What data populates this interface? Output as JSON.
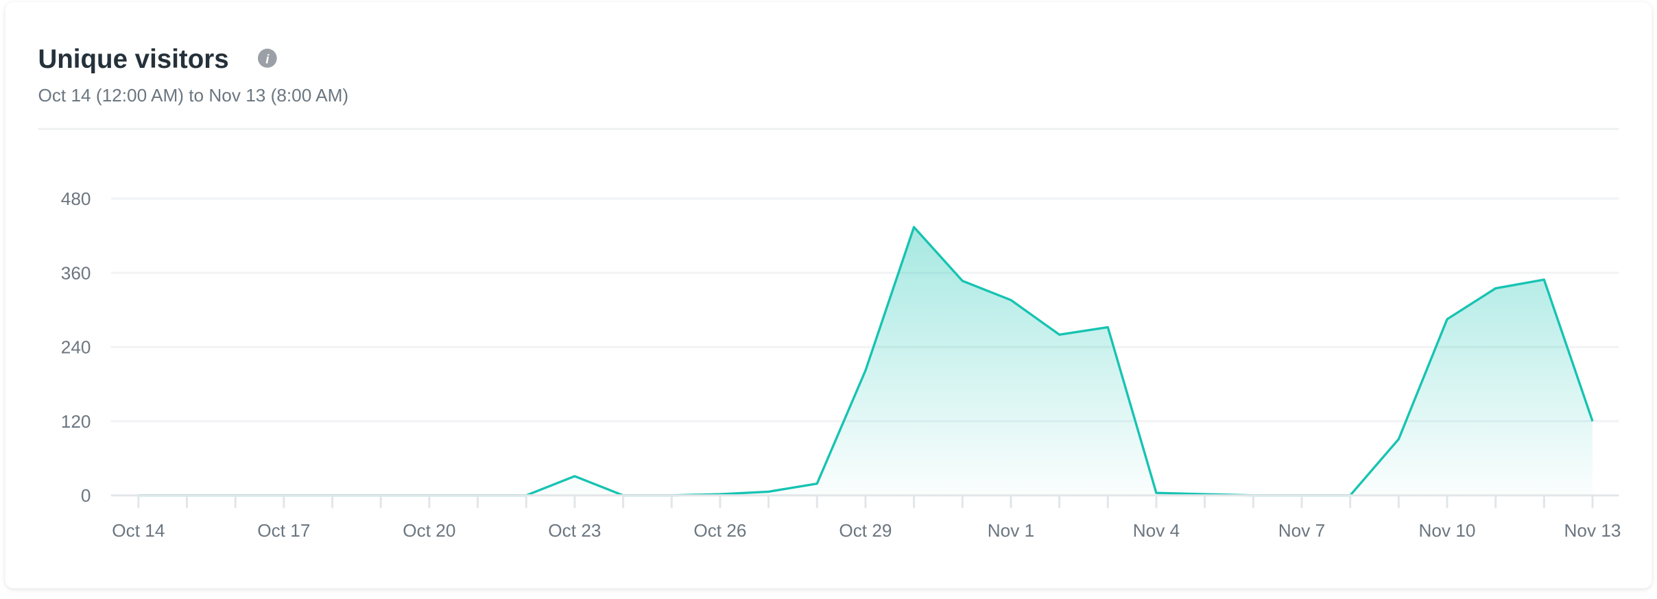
{
  "chart_data": {
    "type": "area",
    "title": "Unique visitors",
    "subtitle": "Oct 14 (12:00 AM) to Nov 13 (8:00 AM)",
    "categories": [
      "Oct 14",
      null,
      null,
      "Oct 17",
      null,
      null,
      "Oct 20",
      null,
      null,
      "Oct 23",
      null,
      null,
      "Oct 26",
      null,
      null,
      "Oct 29",
      null,
      null,
      "Nov 1",
      null,
      null,
      "Nov 4",
      null,
      null,
      "Nov 7",
      null,
      null,
      "Nov 10",
      null,
      null,
      "Nov 13"
    ],
    "series": [
      {
        "name": "Unique visitors",
        "color": "#17c3b2",
        "values": [
          0,
          0,
          0,
          0,
          0,
          0,
          0,
          0,
          0,
          31,
          0,
          0,
          2,
          6,
          19,
          202,
          434,
          347,
          316,
          260,
          272,
          4,
          2,
          0,
          0,
          0,
          91,
          285,
          335,
          349,
          120
        ]
      }
    ],
    "ylim": [
      0,
      480
    ],
    "yticks": [
      0,
      120,
      240,
      360,
      480
    ],
    "grid": true
  }
}
